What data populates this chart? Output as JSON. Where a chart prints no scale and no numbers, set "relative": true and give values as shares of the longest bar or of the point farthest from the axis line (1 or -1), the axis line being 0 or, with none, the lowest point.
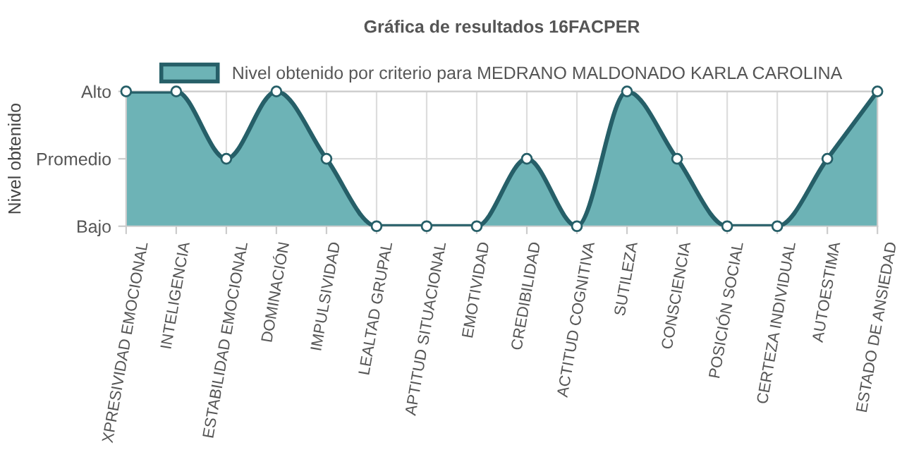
{
  "chart_data": {
    "type": "area",
    "title": "Gráfica de resultados 16FACPER",
    "ylabel": "Nivel obtenido",
    "relative": true,
    "categories": [
      "XPRESIVIDAD EMOCIONAL",
      "INTELIGENCIA",
      "ESTABILIDAD EMOCIONAL",
      "DOMINACIÓN",
      "IMPULSIVIDAD",
      "LEALTAD GRUPAL",
      "APTITUD SITUACIONAL",
      "EMOTIVIDAD",
      "CREDIBILIDAD",
      "ACTITUD COGNITIVA",
      "SUTILEZA",
      "CONSCIENCIA",
      "POSICIÓN SOCIAL",
      "CERTEZA INDIVIDUAL",
      "AUTOESTIMA",
      "ESTADO DE ANSIEDAD"
    ],
    "y_categories": [
      "Alto",
      "Promedio",
      "Bajo"
    ],
    "series": [
      {
        "name": "Nivel obtenido por criterio para MEDRANO MALDONADO KARLA CAROLINA",
        "color": "#6db3b6",
        "values": [
          1,
          1,
          0.5,
          1,
          0.5,
          0,
          0,
          0,
          0.5,
          0,
          1,
          0.5,
          0,
          0,
          0.5,
          1
        ]
      }
    ],
    "grid": true,
    "legend": "top",
    "marker": "circle",
    "line_style": "solid"
  }
}
